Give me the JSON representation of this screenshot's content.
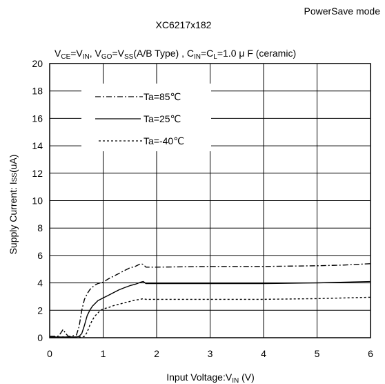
{
  "chart_data": {
    "type": "line",
    "title": "XC6217x182",
    "mode_label": "PowerSave mode",
    "condition": {
      "vce": "V",
      "vce_sub": "CE",
      "eq1": "=V",
      "vin_sub": "IN",
      "sep1": ", V",
      "vgo_sub": "GO",
      "eq2": "=V",
      "vss_sub": "SS",
      "type_text": "(A/B Type) , C",
      "cin_sub": "IN",
      "eq3": "=C",
      "cl_sub": "L",
      "tail": "=1.0 μ F (ceramic)"
    },
    "xlabel": {
      "main": "Input Voltage:V",
      "sub": "IN",
      "tail": " (V)"
    },
    "ylabel": {
      "main": "Supply Current: I",
      "sub": "SS",
      "tail": "(uA)"
    },
    "xlim": [
      0,
      6
    ],
    "ylim": [
      0,
      20
    ],
    "xticks": [
      0,
      1,
      2,
      3,
      4,
      5,
      6
    ],
    "yticks": [
      0,
      2,
      4,
      6,
      8,
      10,
      12,
      14,
      16,
      18,
      20
    ],
    "grid": true,
    "legend_position": "top-left",
    "series": [
      {
        "name": "Ta=85℃",
        "style": "dashdot",
        "x": [
          0,
          0.15,
          0.2,
          0.25,
          0.3,
          0.35,
          0.4,
          0.5,
          0.55,
          0.6,
          0.65,
          0.7,
          0.75,
          0.8,
          0.85,
          0.9,
          1.0,
          1.1,
          1.2,
          1.3,
          1.4,
          1.5,
          1.6,
          1.7,
          1.75,
          1.8,
          2.0,
          3.0,
          4.0,
          5.0,
          5.5,
          6.0
        ],
        "y": [
          0.1,
          0.1,
          0.3,
          0.6,
          0.3,
          0.1,
          0.1,
          0.2,
          0.8,
          2.0,
          2.8,
          3.2,
          3.5,
          3.7,
          3.85,
          3.95,
          4.05,
          4.3,
          4.5,
          4.7,
          4.9,
          5.1,
          5.2,
          5.4,
          5.35,
          5.15,
          5.15,
          5.2,
          5.2,
          5.25,
          5.3,
          5.4
        ]
      },
      {
        "name": "Ta=25℃",
        "style": "solid",
        "x": [
          0,
          0.5,
          0.55,
          0.6,
          0.65,
          0.7,
          0.75,
          0.8,
          0.85,
          0.9,
          1.0,
          1.1,
          1.2,
          1.3,
          1.4,
          1.5,
          1.6,
          1.7,
          1.75,
          1.8,
          2.0,
          3.0,
          4.0,
          5.0,
          5.5,
          6.0
        ],
        "y": [
          0.05,
          0.05,
          0.1,
          0.3,
          0.9,
          1.6,
          2.0,
          2.3,
          2.5,
          2.7,
          2.9,
          3.1,
          3.3,
          3.5,
          3.65,
          3.8,
          3.9,
          4.05,
          4.1,
          3.95,
          3.95,
          3.95,
          3.95,
          4.0,
          4.05,
          4.1
        ]
      },
      {
        "name": "Ta=-40℃",
        "style": "dotted",
        "x": [
          0,
          0.6,
          0.65,
          0.7,
          0.75,
          0.8,
          0.85,
          0.9,
          0.95,
          1.0,
          1.1,
          1.2,
          1.3,
          1.4,
          1.5,
          1.6,
          1.7,
          1.75,
          1.8,
          2.0,
          3.0,
          4.0,
          5.0,
          5.5,
          6.0
        ],
        "y": [
          0.05,
          0.05,
          0.1,
          0.4,
          0.9,
          1.3,
          1.6,
          1.8,
          2.0,
          2.1,
          2.2,
          2.35,
          2.45,
          2.55,
          2.65,
          2.75,
          2.8,
          2.85,
          2.8,
          2.8,
          2.8,
          2.8,
          2.85,
          2.9,
          2.95
        ]
      }
    ]
  }
}
